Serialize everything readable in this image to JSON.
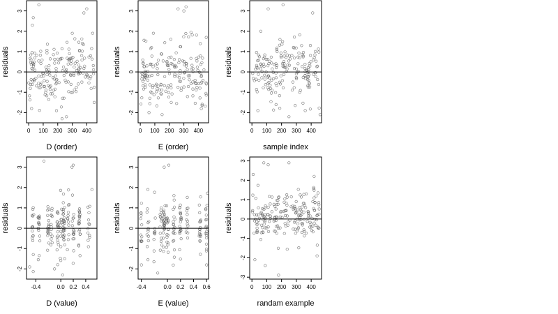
{
  "chart_data": [
    {
      "type": "scatter",
      "xlabel": "D (order)",
      "ylabel": "residuals",
      "xlim": [
        -15,
        470
      ],
      "ylim": [
        -2.5,
        3.5
      ],
      "xticks": [
        0,
        100,
        200,
        300,
        400
      ],
      "xtick_labels": [
        "0",
        "100",
        "200",
        "300",
        "400"
      ],
      "yticks": [
        -2,
        -1,
        0,
        1,
        2,
        3
      ],
      "ytick_labels": [
        "-2",
        "-1",
        "0",
        "1",
        "2",
        "3"
      ],
      "reference_line_y": 0,
      "clusters": false,
      "highlights": [
        [
          70,
          3.3
        ],
        [
          260,
          -2.2
        ],
        [
          300,
          1.9
        ],
        [
          380,
          2.9
        ],
        [
          400,
          3.1
        ],
        [
          20,
          -1.8
        ],
        [
          440,
          1.9
        ],
        [
          230,
          -2.3
        ]
      ],
      "n_points": 180,
      "seed": 11
    },
    {
      "type": "scatter",
      "xlabel": "E (order)",
      "ylabel": "residuals",
      "xlim": [
        -15,
        470
      ],
      "ylim": [
        -2.5,
        3.5
      ],
      "xticks": [
        0,
        100,
        200,
        300,
        400
      ],
      "xtick_labels": [
        "0",
        "100",
        "200",
        "300",
        "400"
      ],
      "yticks": [
        -2,
        -1,
        0,
        1,
        2,
        3
      ],
      "ytick_labels": [
        "-2",
        "-1",
        "0",
        "1",
        "2",
        "3"
      ],
      "reference_line_y": 0,
      "clusters": false,
      "highlights": [
        [
          300,
          3.0
        ],
        [
          315,
          3.2
        ],
        [
          260,
          3.1
        ],
        [
          90,
          1.9
        ],
        [
          60,
          -2.0
        ],
        [
          150,
          -2.1
        ],
        [
          420,
          -1.8
        ],
        [
          210,
          1.6
        ]
      ],
      "n_points": 180,
      "seed": 23
    },
    {
      "type": "scatter",
      "xlabel": "sample index",
      "ylabel": "residuals",
      "xlim": [
        -15,
        470
      ],
      "ylim": [
        -2.5,
        3.5
      ],
      "xticks": [
        0,
        100,
        200,
        300,
        400
      ],
      "xtick_labels": [
        "0",
        "100",
        "200",
        "300",
        "400"
      ],
      "yticks": [
        -2,
        -1,
        0,
        1,
        2,
        3
      ],
      "ytick_labels": [
        "-2",
        "-1",
        "0",
        "1",
        "2",
        "3"
      ],
      "reference_line_y": 0,
      "clusters": false,
      "highlights": [
        [
          210,
          3.3
        ],
        [
          110,
          3.1
        ],
        [
          410,
          2.9
        ],
        [
          40,
          -1.9
        ],
        [
          250,
          -2.2
        ],
        [
          460,
          -2.1
        ],
        [
          360,
          -1.9
        ],
        [
          60,
          2.0
        ]
      ],
      "n_points": 180,
      "seed": 37
    },
    {
      "type": "scatter",
      "xlabel": "D (value)",
      "ylabel": "residuals",
      "xlim": [
        -0.55,
        0.58
      ],
      "ylim": [
        -2.5,
        3.5
      ],
      "xticks": [
        -0.4,
        0.0,
        0.2,
        0.4
      ],
      "xtick_labels": [
        "-0.4",
        "0.0",
        "0.2",
        "0.4"
      ],
      "yticks": [
        -2,
        -1,
        0,
        1,
        2,
        3
      ],
      "ytick_labels": [
        "-2",
        "-1",
        "0",
        "1",
        "2",
        "3"
      ],
      "reference_line_y": 0,
      "clusters": true,
      "cluster_x": [
        -0.45,
        -0.35,
        -0.2,
        -0.15,
        -0.05,
        0.0,
        0.05,
        0.12,
        0.2,
        0.3,
        0.45
      ],
      "highlights": [
        [
          -0.27,
          3.3
        ],
        [
          0.18,
          3.0
        ],
        [
          0.2,
          3.1
        ],
        [
          -0.5,
          -1.9
        ],
        [
          0.03,
          -2.3
        ],
        [
          0.5,
          1.9
        ],
        [
          -0.1,
          -2.0
        ]
      ],
      "n_points": 180,
      "seed": 53
    },
    {
      "type": "scatter",
      "xlabel": "E (value)",
      "ylabel": "residuals",
      "xlim": [
        -0.45,
        0.63
      ],
      "ylim": [
        -2.5,
        3.5
      ],
      "xticks": [
        -0.4,
        0.0,
        0.2,
        0.4,
        0.6
      ],
      "xtick_labels": [
        "-0.4",
        "0.0",
        "0.2",
        "0.4",
        "0.6"
      ],
      "yticks": [
        -2,
        -1,
        0,
        1,
        2,
        3
      ],
      "ytick_labels": [
        "-2",
        "-1",
        "0",
        "1",
        "2",
        "3"
      ],
      "reference_line_y": 0,
      "clusters": true,
      "cluster_x": [
        -0.4,
        -0.3,
        -0.2,
        -0.1,
        -0.05,
        0.0,
        0.1,
        0.2,
        0.3,
        0.5,
        0.6
      ],
      "highlights": [
        [
          -0.05,
          3.0
        ],
        [
          0.02,
          3.1
        ],
        [
          -0.4,
          -1.8
        ],
        [
          -0.15,
          -2.2
        ],
        [
          0.6,
          -1.8
        ],
        [
          -0.3,
          1.9
        ],
        [
          0.1,
          1.6
        ]
      ],
      "n_points": 180,
      "seed": 71
    },
    {
      "type": "scatter",
      "xlabel": "randam example",
      "ylabel": "residuals",
      "xlim": [
        -15,
        470
      ],
      "ylim": [
        -3.1,
        3.2
      ],
      "xticks": [
        0,
        100,
        200,
        300,
        400
      ],
      "xtick_labels": [
        "0",
        "100",
        "200",
        "300",
        "400"
      ],
      "yticks": [
        -3,
        -2,
        -1,
        0,
        1,
        2,
        3
      ],
      "ytick_labels": [
        "-3",
        "-2",
        "-1",
        "0",
        "1",
        "2",
        "3"
      ],
      "reference_line_y": 0,
      "clusters": false,
      "highlights": [
        [
          80,
          2.9
        ],
        [
          110,
          2.8
        ],
        [
          250,
          2.9
        ],
        [
          180,
          -2.9
        ],
        [
          90,
          -2.4
        ],
        [
          420,
          2.2
        ],
        [
          20,
          -2.1
        ],
        [
          440,
          -1.9
        ]
      ],
      "n_points": 200,
      "seed": 97
    }
  ]
}
